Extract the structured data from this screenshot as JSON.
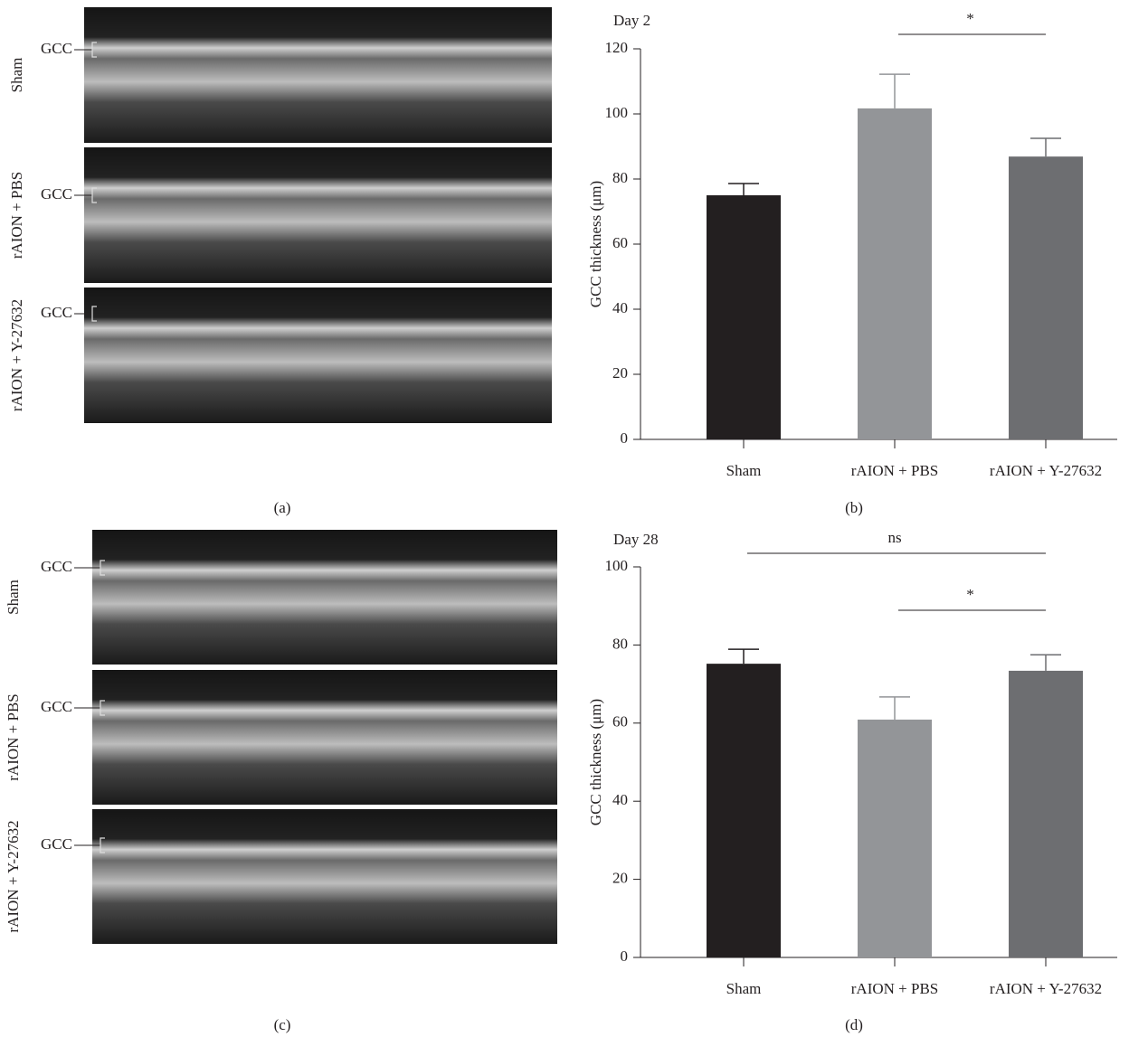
{
  "image_figures": [
    {
      "caption": "(a)",
      "rows": [
        {
          "label": "Sham",
          "layer": "GCC"
        },
        {
          "label": "rAION + PBS",
          "layer": "GCC"
        },
        {
          "label": "rAION + Y-27632",
          "layer": "GCC"
        }
      ]
    },
    {
      "caption": "(c)",
      "rows": [
        {
          "label": "Sham",
          "layer": "GCC"
        },
        {
          "label": "rAION + PBS",
          "layer": "GCC"
        },
        {
          "label": "rAION + Y-27632",
          "layer": "GCC"
        }
      ]
    }
  ],
  "chart_data": [
    {
      "type": "bar",
      "title": "Day 2",
      "caption": "(b)",
      "y_label": "GCC thickness (μm)",
      "categories": [
        "Sham",
        "rAION + PBS",
        "rAION + Y-27632"
      ],
      "values": [
        75,
        101.7,
        86.9
      ],
      "errors": [
        3.6,
        10.5,
        5.6
      ],
      "colors": [
        "#231f20",
        "#939598",
        "#6d6e71"
      ],
      "ylim": [
        0,
        120
      ],
      "yticks": [
        0,
        20,
        40,
        60,
        80,
        100,
        120
      ],
      "annotations": [
        {
          "text": "*",
          "from": 1,
          "to": 2
        }
      ]
    },
    {
      "type": "bar",
      "title": "Day 28",
      "caption": "(d)",
      "y_label": "GCC thickness (μm)",
      "categories": [
        "Sham",
        "rAION + PBS",
        "rAION + Y-27632"
      ],
      "values": [
        75.2,
        60.9,
        73.4
      ],
      "errors": [
        3.7,
        5.8,
        4.1
      ],
      "colors": [
        "#231f20",
        "#939598",
        "#6d6e71"
      ],
      "ylim": [
        0,
        100
      ],
      "yticks": [
        0,
        20,
        40,
        60,
        80,
        100
      ],
      "annotations": [
        {
          "text": "ns",
          "from": 0,
          "to": 2
        },
        {
          "text": "*",
          "from": 1,
          "to": 2
        }
      ]
    }
  ]
}
